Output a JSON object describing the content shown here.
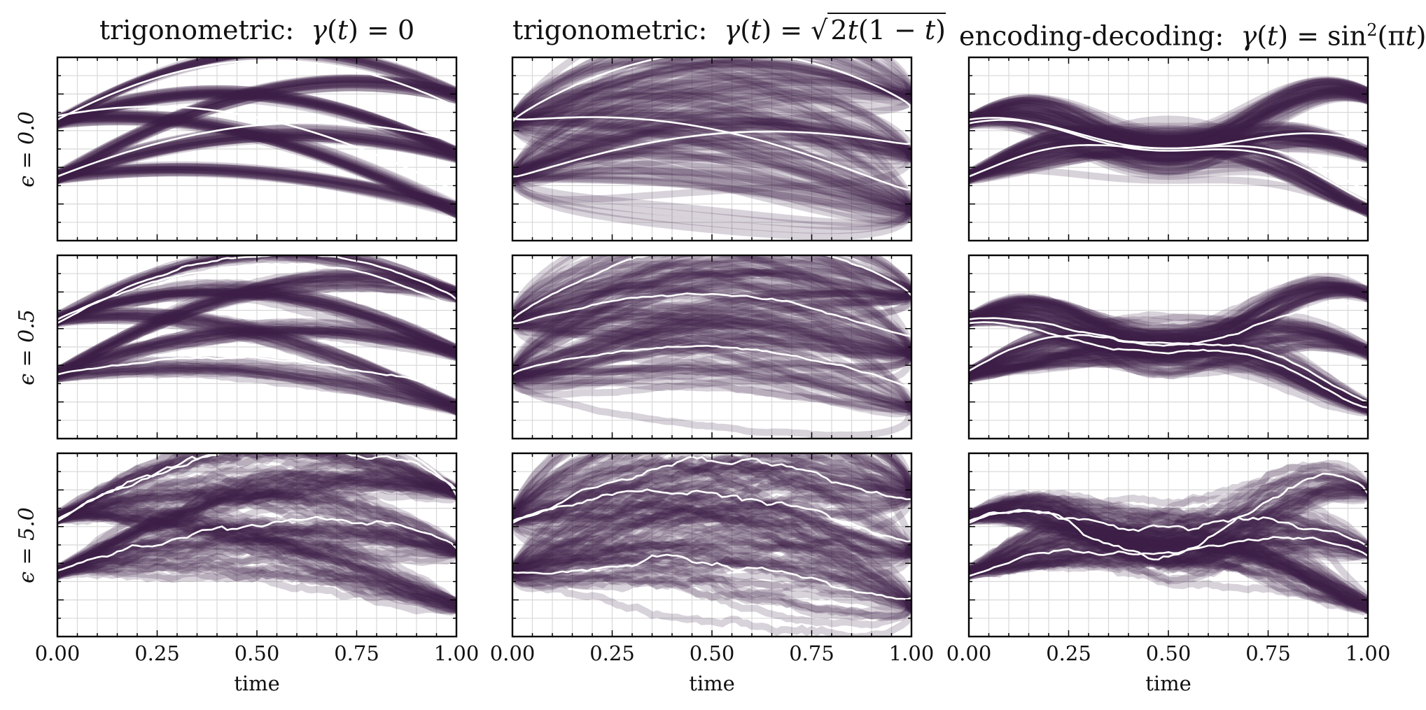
{
  "chart_data": [
    {
      "type": "line",
      "panel": "r0c0",
      "column_title": "trigonometric: γ(t) = 0",
      "row_label": "ϵ = 0.0",
      "epsilon": 0.0,
      "xlabel": "",
      "xlim": [
        0,
        1
      ],
      "xticks": [],
      "gamma": "zero",
      "grid": true,
      "highlight_paths": [
        {
          "start": 0.35,
          "end": 0.54
        },
        {
          "start": 0.68,
          "end": 0.27
        },
        {
          "start": 0.66,
          "end": 0.73
        }
      ]
    },
    {
      "type": "line",
      "panel": "r0c1",
      "column_title": "trigonometric: γ(t) = √2t(1 − t)",
      "row_label": "ϵ = 0.0",
      "epsilon": 0.0,
      "xlabel": "",
      "xlim": [
        0,
        1
      ],
      "xticks": [],
      "gamma": "sqrt",
      "grid": true,
      "highlight_paths": [
        {
          "start": 0.35,
          "end": 0.53
        },
        {
          "start": 0.65,
          "end": 0.73
        },
        {
          "start": 0.67,
          "end": 0.28
        }
      ]
    },
    {
      "type": "line",
      "panel": "r0c2",
      "column_title": "encoding-decoding: γ(t) = sin²(πt)",
      "row_label": "ϵ = 0.0",
      "epsilon": 0.0,
      "xlabel": "",
      "xlim": [
        0,
        1
      ],
      "xticks": [],
      "gamma": "sin2",
      "grid": true,
      "highlight_paths": [
        {
          "start": 0.35,
          "end": 0.54
        },
        {
          "start": 0.64,
          "end": 0.27
        },
        {
          "start": 0.66,
          "end": 0.21
        }
      ]
    },
    {
      "type": "line",
      "panel": "r1c0",
      "column_title": "",
      "row_label": "ϵ = 0.5",
      "epsilon": 0.5,
      "xlabel": "",
      "xlim": [
        0,
        1
      ],
      "xticks": [],
      "gamma": "zero",
      "grid": true,
      "highlight_paths": [
        {
          "start": 0.35,
          "end": 0.28
        },
        {
          "start": 0.63,
          "end": 0.76
        },
        {
          "start": 0.65,
          "end": 0.72
        }
      ]
    },
    {
      "type": "line",
      "panel": "r1c1",
      "column_title": "",
      "row_label": "ϵ = 0.5",
      "epsilon": 0.5,
      "xlabel": "",
      "xlim": [
        0,
        1
      ],
      "xticks": [],
      "gamma": "sqrt",
      "grid": true,
      "highlight_paths": [
        {
          "start": 0.35,
          "end": 0.26
        },
        {
          "start": 0.63,
          "end": 0.56
        },
        {
          "start": 0.65,
          "end": 0.78
        }
      ]
    },
    {
      "type": "line",
      "panel": "r1c2",
      "column_title": "",
      "row_label": "ϵ = 0.5",
      "epsilon": 0.5,
      "xlabel": "",
      "xlim": [
        0,
        1
      ],
      "xticks": [],
      "gamma": "sin2",
      "grid": true,
      "highlight_paths": [
        {
          "start": 0.37,
          "end": 0.73
        },
        {
          "start": 0.63,
          "end": 0.17
        },
        {
          "start": 0.65,
          "end": 0.2
        }
      ]
    },
    {
      "type": "line",
      "panel": "r2c0",
      "column_title": "",
      "row_label": "ϵ = 5.0",
      "epsilon": 5.0,
      "xlabel": "time",
      "xlim": [
        0,
        1
      ],
      "xticks": [
        "0.00",
        "0.25",
        "0.50",
        "0.75",
        "1.00"
      ],
      "gamma": "zero",
      "grid": true,
      "highlight_paths": [
        {
          "start": 0.36,
          "end": 0.48
        },
        {
          "start": 0.63,
          "end": 0.8
        },
        {
          "start": 0.64,
          "end": 0.77
        }
      ]
    },
    {
      "type": "line",
      "panel": "r2c1",
      "column_title": "",
      "row_label": "ϵ = 5.0",
      "epsilon": 5.0,
      "xlabel": "time",
      "xlim": [
        0,
        1
      ],
      "xticks": [
        "0.00",
        "0.25",
        "0.50",
        "0.75",
        "1.00"
      ],
      "gamma": "sqrt",
      "grid": true,
      "highlight_paths": [
        {
          "start": 0.35,
          "end": 0.21
        },
        {
          "start": 0.63,
          "end": 0.52
        },
        {
          "start": 0.62,
          "end": 0.75
        }
      ]
    },
    {
      "type": "line",
      "panel": "r2c2",
      "column_title": "",
      "row_label": "ϵ = 5.0",
      "epsilon": 5.0,
      "xlabel": "time",
      "xlim": [
        0,
        1
      ],
      "xticks": [
        "0.00",
        "0.25",
        "0.50",
        "0.75",
        "1.00"
      ],
      "gamma": "sin2",
      "grid": true,
      "highlight_paths": [
        {
          "start": 0.33,
          "end": 0.44
        },
        {
          "start": 0.63,
          "end": 0.49
        },
        {
          "start": 0.62,
          "end": 0.78
        }
      ]
    }
  ],
  "colors": {
    "trajectory": "#3d1f45",
    "highlight": "#ffffff",
    "grid": "#d8d8d8",
    "frame": "#000000"
  }
}
